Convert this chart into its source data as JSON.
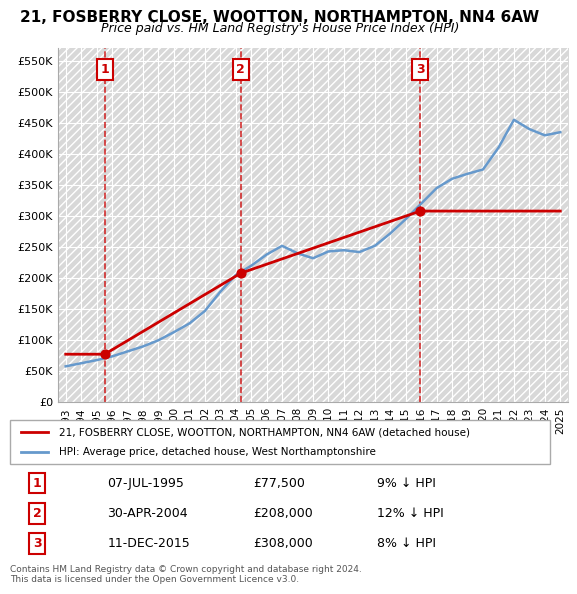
{
  "title": "21, FOSBERRY CLOSE, WOOTTON, NORTHAMPTON, NN4 6AW",
  "subtitle": "Price paid vs. HM Land Registry's House Price Index (HPI)",
  "sale_dates": [
    1995.52,
    2004.33,
    2015.94
  ],
  "sale_prices": [
    77500,
    208000,
    308000
  ],
  "sale_labels": [
    "1",
    "2",
    "3"
  ],
  "hpi_years": [
    1993,
    1994,
    1995,
    1996,
    1997,
    1998,
    1999,
    2000,
    2001,
    2002,
    2003,
    2004,
    2005,
    2006,
    2007,
    2008,
    2009,
    2010,
    2011,
    2012,
    2013,
    2014,
    2015,
    2016,
    2017,
    2018,
    2019,
    2020,
    2021,
    2022,
    2023,
    2024,
    2025
  ],
  "hpi_values": [
    58000,
    63000,
    68000,
    74000,
    82000,
    90000,
    100000,
    113000,
    127000,
    147000,
    178000,
    205000,
    220000,
    238000,
    252000,
    240000,
    232000,
    243000,
    245000,
    242000,
    252000,
    272000,
    295000,
    320000,
    345000,
    360000,
    368000,
    375000,
    410000,
    455000,
    440000,
    430000,
    435000
  ],
  "red_line_years": [
    1993,
    1995.52,
    1995.52,
    2004.33,
    2004.33,
    2015.94,
    2015.94,
    2025
  ],
  "red_line_values": [
    77500,
    77500,
    77500,
    208000,
    208000,
    308000,
    308000,
    308000
  ],
  "ylim": [
    0,
    570000
  ],
  "xlim": [
    1992.5,
    2025.5
  ],
  "yticks": [
    0,
    50000,
    100000,
    150000,
    200000,
    250000,
    300000,
    350000,
    400000,
    450000,
    500000,
    550000
  ],
  "ytick_labels": [
    "£0",
    "£50K",
    "£100K",
    "£150K",
    "£200K",
    "£250K",
    "£300K",
    "£350K",
    "£400K",
    "£450K",
    "£500K",
    "£550K"
  ],
  "xticks": [
    1993,
    1994,
    1995,
    1996,
    1997,
    1998,
    1999,
    2000,
    2001,
    2002,
    2003,
    2004,
    2005,
    2006,
    2007,
    2008,
    2009,
    2010,
    2011,
    2012,
    2013,
    2014,
    2015,
    2016,
    2017,
    2018,
    2019,
    2020,
    2021,
    2022,
    2023,
    2024,
    2025
  ],
  "red_color": "#cc0000",
  "blue_color": "#6699cc",
  "bg_color": "#f0f0f0",
  "hatch_color": "#d8d8d8",
  "grid_color": "#ffffff",
  "legend_entries": [
    "21, FOSBERRY CLOSE, WOOTTON, NORTHAMPTON, NN4 6AW (detached house)",
    "HPI: Average price, detached house, West Northamptonshire"
  ],
  "table_data": [
    [
      "1",
      "07-JUL-1995",
      "£77,500",
      "9% ↓ HPI"
    ],
    [
      "2",
      "30-APR-2004",
      "£208,000",
      "12% ↓ HPI"
    ],
    [
      "3",
      "11-DEC-2015",
      "£308,000",
      "8% ↓ HPI"
    ]
  ],
  "footer": "Contains HM Land Registry data © Crown copyright and database right 2024.\nThis data is licensed under the Open Government Licence v3.0.",
  "vline_years": [
    1995.52,
    2004.33,
    2015.94
  ],
  "vline_color": "#cc0000"
}
